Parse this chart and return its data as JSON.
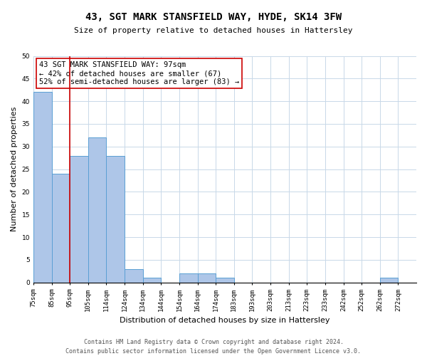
{
  "title": "43, SGT MARK STANSFIELD WAY, HYDE, SK14 3FW",
  "subtitle": "Size of property relative to detached houses in Hattersley",
  "xlabel": "Distribution of detached houses by size in Hattersley",
  "ylabel": "Number of detached properties",
  "footer_line1": "Contains HM Land Registry data © Crown copyright and database right 2024.",
  "footer_line2": "Contains public sector information licensed under the Open Government Licence v3.0.",
  "bin_labels": [
    "75sqm",
    "85sqm",
    "95sqm",
    "105sqm",
    "114sqm",
    "124sqm",
    "134sqm",
    "144sqm",
    "154sqm",
    "164sqm",
    "174sqm",
    "183sqm",
    "193sqm",
    "203sqm",
    "213sqm",
    "223sqm",
    "233sqm",
    "242sqm",
    "252sqm",
    "262sqm",
    "272sqm"
  ],
  "bar_heights": [
    42,
    24,
    28,
    32,
    28,
    3,
    1,
    0,
    2,
    2,
    1,
    0,
    0,
    0,
    0,
    0,
    0,
    0,
    0,
    1,
    0
  ],
  "bar_color": "#aec6e8",
  "bar_edge_color": "#5a9fd4",
  "vline_x": 2,
  "vline_color": "#cc0000",
  "ylim": [
    0,
    50
  ],
  "yticks": [
    0,
    5,
    10,
    15,
    20,
    25,
    30,
    35,
    40,
    45,
    50
  ],
  "annotation_title": "43 SGT MARK STANSFIELD WAY: 97sqm",
  "annotation_line2": "← 42% of detached houses are smaller (67)",
  "annotation_line3": "52% of semi-detached houses are larger (83) →",
  "property_size_sqm": 97,
  "background_color": "#ffffff",
  "grid_color": "#c8d8e8",
  "title_fontsize": 10,
  "subtitle_fontsize": 8,
  "xlabel_fontsize": 8,
  "ylabel_fontsize": 8,
  "tick_fontsize": 6.5,
  "annotation_fontsize": 7.5,
  "footer_fontsize": 6
}
